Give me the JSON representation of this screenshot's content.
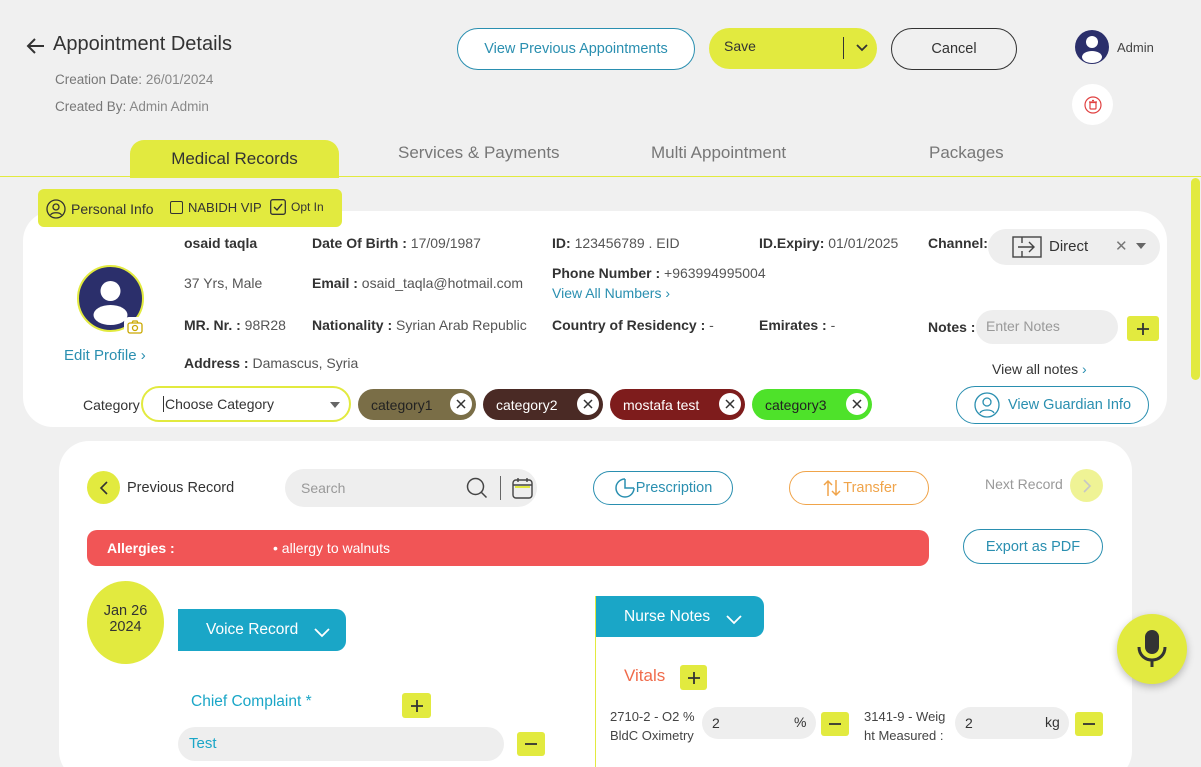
{
  "header": {
    "title": "Appointment Details",
    "creation_label": "Creation Date:",
    "creation_value": "26/01/2024",
    "created_by_label": "Created By:",
    "created_by_value": "Admin Admin",
    "view_previous_label": "View Previous Appointments",
    "save_label": "Save",
    "cancel_label": "Cancel",
    "user_name": "Admin"
  },
  "tabs": [
    {
      "label": "Medical Records",
      "active": true
    },
    {
      "label": "Services & Payments"
    },
    {
      "label": "Multi Appointment"
    },
    {
      "label": "Packages"
    }
  ],
  "personal_bar": {
    "personal_info": "Personal Info",
    "nabidh_vip": "NABIDH VIP",
    "opt_in": "Opt In"
  },
  "patient": {
    "name": "osaid taqla",
    "age_gender": "37 Yrs, Male",
    "mr_label": "MR. Nr. :",
    "mr_value": "98R28",
    "address_label": "Address :",
    "address_value": "Damascus, Syria",
    "dob_label": "Date Of Birth :",
    "dob_value": "17/09/1987",
    "email_label": "Email :",
    "email_value": "osaid_taqla@hotmail.com",
    "nationality_label": "Nationality :",
    "nationality_value": "Syrian Arab Republic",
    "id_label": "ID:",
    "id_value": "123456789 . EID",
    "phone_label": "Phone Number :",
    "phone_value": "+963994995004",
    "view_all_numbers": "View All Numbers",
    "residency_label": "Country of Residency :",
    "residency_value": "-",
    "id_expiry_label": "ID.Expiry:",
    "id_expiry_value": "01/01/2025",
    "emirates_label": "Emirates :",
    "emirates_value": "-",
    "channel_label": "Channel:",
    "channel_value": "Direct",
    "notes_label": "Notes :",
    "notes_placeholder": "Enter Notes",
    "view_all_notes": "View all notes",
    "edit_profile": "Edit Profile",
    "category_label": "Category",
    "category_placeholder": "Choose Category",
    "view_guardian": "View Guardian Info"
  },
  "categories": [
    {
      "label": "category1",
      "bg": "#7a6e47",
      "color": "#222"
    },
    {
      "label": "category2",
      "bg": "#4a2a25",
      "color": "#fff"
    },
    {
      "label": "mostafa test",
      "bg": "#7e1c1c",
      "color": "#fff"
    },
    {
      "label": "category3",
      "bg": "#4ee22a",
      "color": "#222"
    }
  ],
  "record": {
    "previous": "Previous Record",
    "next": "Next Record",
    "search_placeholder": "Search",
    "prescription": "Prescription",
    "transfer": "Transfer",
    "export_pdf": "Export as PDF",
    "allergies_label": "Allergies :",
    "allergy_item": "allergy to walnuts",
    "date_line1": "Jan 26",
    "date_line2": "2024",
    "voice_record": "Voice Record",
    "chief_complaint": "Chief Complaint *",
    "chief_value": "Test",
    "nurse_notes": "Nurse Notes",
    "vitals": "Vitals",
    "vital1_line1": "2710-2 - O2 %",
    "vital1_line2": "BldC Oximetry",
    "vital1_value": "2",
    "vital1_unit": "%",
    "vital2_line1": "3141-9 - Weig",
    "vital2_line2": "ht Measured :",
    "vital2_value": "2",
    "vital2_unit": "kg"
  },
  "colors": {
    "accent": "#e2ea3f",
    "blue": "#1aa6c7",
    "allergy": "#f15556",
    "navy": "#2b2f6b"
  }
}
